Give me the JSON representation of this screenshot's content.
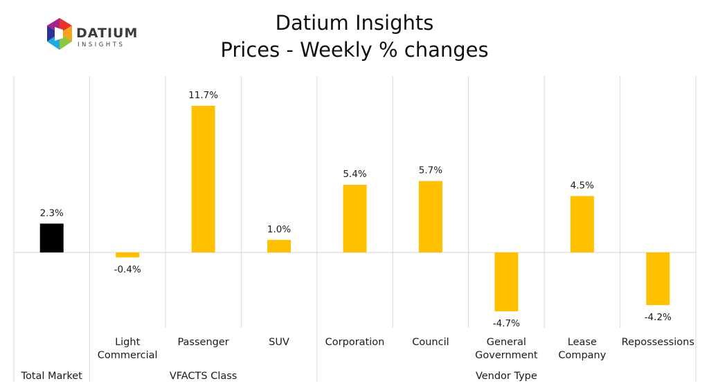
{
  "header": {
    "title_line1": "Datium Insights",
    "title_line2": "Prices - Weekly % changes"
  },
  "logo": {
    "word": "DATIUM",
    "sub": "INSIGHTS",
    "colors": [
      "#e8332a",
      "#f7a21b",
      "#8dc63f",
      "#1ea9e0",
      "#2e3192",
      "#a3238e"
    ]
  },
  "chart_data": {
    "type": "bar",
    "categories": [
      "Total Market",
      "Light Commercial",
      "Passenger",
      "SUV",
      "Corporation",
      "Council",
      "General Government",
      "Lease Company",
      "Repossessions"
    ],
    "category_lines": [
      [
        "Total Market"
      ],
      [
        "Light",
        "Commercial"
      ],
      [
        "Passenger"
      ],
      [
        "SUV"
      ],
      [
        "Corporation"
      ],
      [
        "Council"
      ],
      [
        "General",
        "Government"
      ],
      [
        "Lease",
        "Company"
      ],
      [
        "Repossessions"
      ]
    ],
    "groups": [
      {
        "label": "Total Market",
        "span": [
          0,
          0
        ]
      },
      {
        "label": "VFACTS Class",
        "span": [
          1,
          3
        ]
      },
      {
        "label": "Vendor Type",
        "span": [
          4,
          8
        ]
      }
    ],
    "values": [
      2.3,
      -0.4,
      11.7,
      1.0,
      5.4,
      5.7,
      -4.7,
      4.5,
      -4.2
    ],
    "value_labels": [
      "2.3%",
      "-0.4%",
      "11.7%",
      "1.0%",
      "5.4%",
      "5.7%",
      "-4.7%",
      "4.5%",
      "-4.2%"
    ],
    "colors": [
      "#000000",
      "#ffc000",
      "#ffc000",
      "#ffc000",
      "#ffc000",
      "#ffc000",
      "#ffc000",
      "#ffc000",
      "#ffc000"
    ],
    "ylim": [
      -6,
      14
    ],
    "grid": false,
    "legend": "none"
  }
}
